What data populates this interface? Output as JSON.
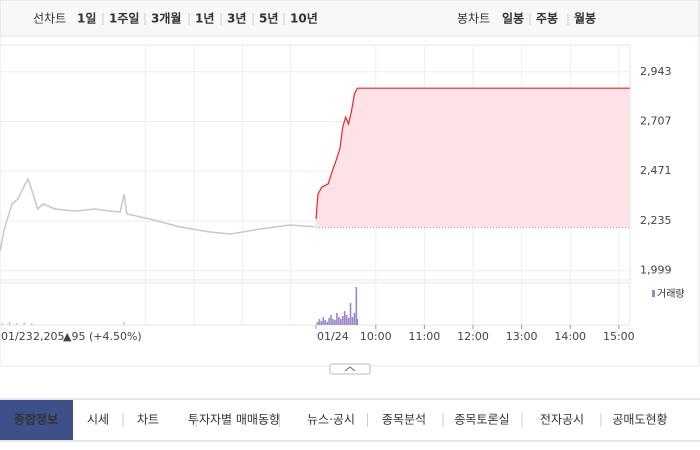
{
  "toolbar": {
    "line_label": "선차트",
    "periods": [
      "1일",
      "1주일",
      "3개월",
      "1년",
      "3년",
      "5년",
      "10년"
    ],
    "selected": 0,
    "candle_label": "봉차트",
    "candles": [
      "일봉",
      "주봉",
      "월봉"
    ]
  },
  "chart_data": {
    "type": "line",
    "color": "#e8262b",
    "fill": "#fde3e5",
    "x": [
      8.77,
      8.81,
      8.89,
      9.02,
      9.12,
      9.18,
      9.26,
      9.32,
      9.38,
      9.44,
      9.5,
      9.56,
      9.62,
      15.23
    ],
    "values": [
      2244,
      2363,
      2396,
      2411,
      2482,
      2520,
      2577,
      2681,
      2728,
      2695,
      2757,
      2837,
      2865,
      2865
    ],
    "xlim": [
      8.77,
      15.23
    ],
    "xticks": [
      {
        "value": 10,
        "label": "10:00"
      },
      {
        "value": 11,
        "label": "11:00"
      },
      {
        "value": 12,
        "label": "12:00"
      },
      {
        "value": 13,
        "label": "13:00"
      },
      {
        "value": 14,
        "label": "14:00"
      },
      {
        "value": 15,
        "label": "15:00"
      }
    ],
    "today_label": "01/24",
    "prev_color": "#c8c8c8",
    "prev_x": [
      9.0,
      9.1,
      9.25,
      9.37,
      9.52,
      9.58,
      9.68,
      9.78,
      9.89,
      10.13,
      10.55,
      10.96,
      11.27,
      11.48,
      11.56,
      11.62,
      12.1,
      12.71,
      13.33,
      13.75,
      14.37,
      14.98,
      15.5
    ],
    "prev_values": [
      2093,
      2207,
      2316,
      2339,
      2411,
      2434,
      2363,
      2292,
      2316,
      2292,
      2282,
      2292,
      2282,
      2278,
      2363,
      2268,
      2244,
      2207,
      2183,
      2173,
      2197,
      2216,
      2207
    ],
    "prev_xlim": [
      9,
      15.5
    ],
    "prev_grid_x": [
      12,
      13,
      14,
      15
    ],
    "prev_label": {
      "date": "01/23",
      "close": "2,205",
      "change": "▲95 (+4.50%)"
    },
    "base": 2205,
    "ylim": [
      1955,
      3070
    ],
    "yticks": [
      {
        "value": 1999,
        "label": "1,999"
      },
      {
        "value": 2235,
        "label": "2,235"
      },
      {
        "value": 2471,
        "label": "2,471"
      },
      {
        "value": 2707,
        "label": "2,707"
      },
      {
        "value": 2943,
        "label": "2,943"
      }
    ],
    "grid": true,
    "volume": {
      "name": "거래량",
      "color": "#9b86c9",
      "ylim": [
        0,
        40
      ],
      "x": [
        8.8,
        8.84,
        8.88,
        8.92,
        8.96,
        9.0,
        9.04,
        9.08,
        9.12,
        9.16,
        9.2,
        9.24,
        9.28,
        9.32,
        9.36,
        9.4,
        9.44,
        9.48,
        9.52,
        9.56,
        9.6,
        9.62
      ],
      "values": [
        3,
        6,
        4,
        8,
        5,
        3,
        7,
        10,
        6,
        5,
        12,
        8,
        6,
        9,
        14,
        10,
        7,
        22,
        8,
        12,
        38,
        6
      ],
      "prev_x": [
        9.05,
        9.2,
        9.35,
        9.5,
        9.65,
        11.56
      ],
      "prev_values": [
        2,
        3,
        2,
        3,
        2,
        3
      ]
    }
  },
  "tabs": {
    "items": [
      "종합정보",
      "시세",
      "차트",
      "투자자별 매매동향",
      "뉴스·공시",
      "종목분석",
      "종목토론실",
      "전자공시",
      "공매도현황"
    ],
    "selected": 0
  }
}
